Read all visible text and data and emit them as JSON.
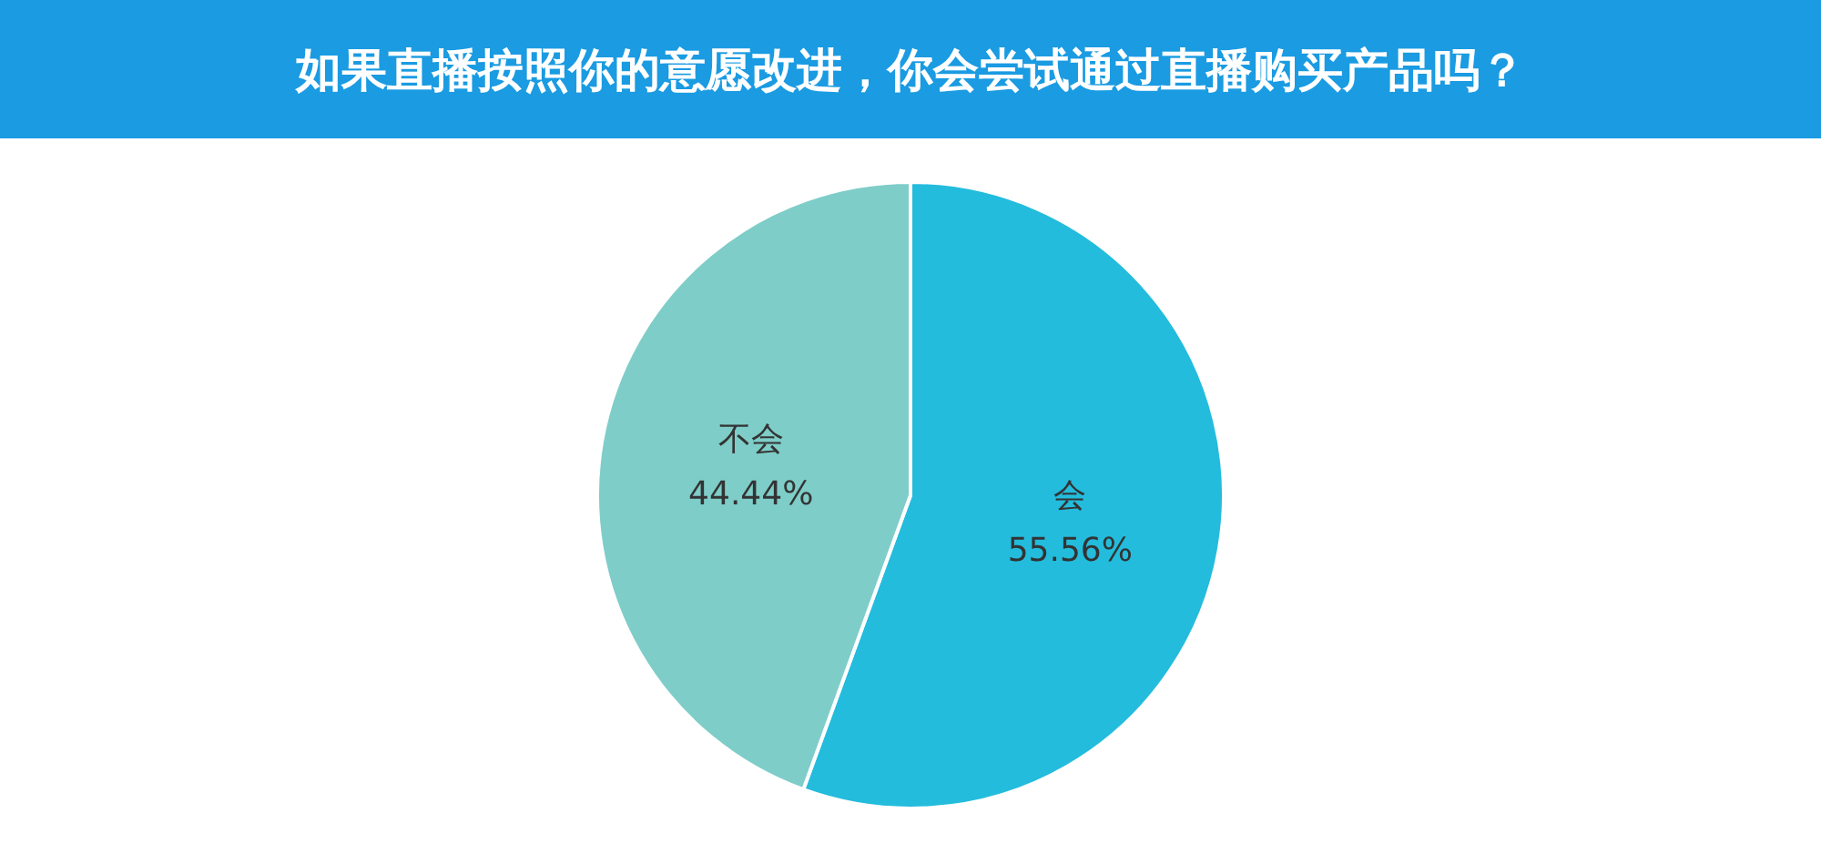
{
  "chart_data": {
    "type": "pie",
    "title": "如果直播按照你的意愿改进，你会尝试通过直播购买产品吗？",
    "categories": [
      "会",
      "不会"
    ],
    "values": [
      55.56,
      44.44
    ],
    "value_labels": [
      "55.56%",
      "44.44%"
    ],
    "colors": [
      "#23bcdd",
      "#7ecdc8"
    ],
    "legend": false
  }
}
